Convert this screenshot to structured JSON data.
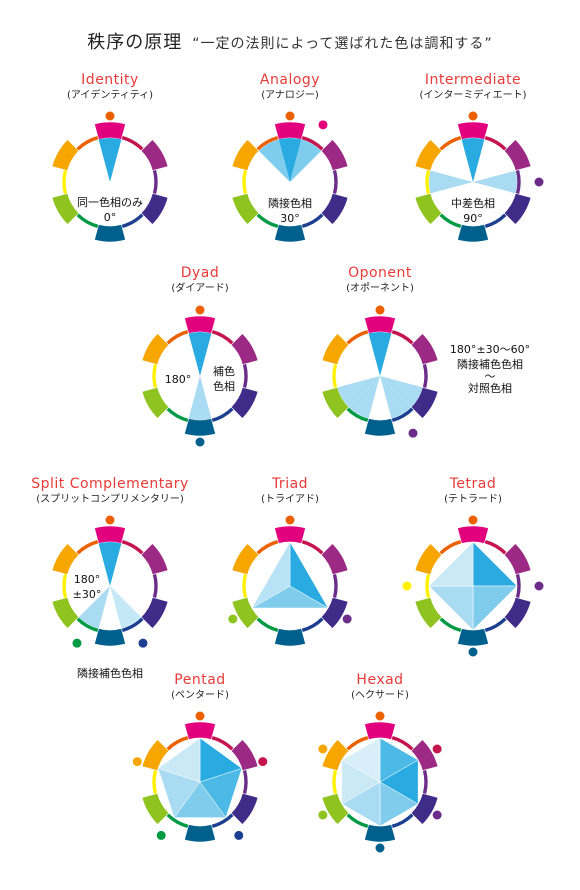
{
  "title": {
    "main": "秩序の原理",
    "sub": "“一定の法則によって選ばれた色は調和する”"
  },
  "wheel_colors": [
    "#e3007f",
    "#c4154f",
    "#9c2a85",
    "#6b2c8a",
    "#3f2c88",
    "#1d3f8f",
    "#00608d",
    "#009a44",
    "#8fc31f",
    "#fff100",
    "#f7a600",
    "#eb6100"
  ],
  "schemes": [
    {
      "name_en": "Identity",
      "name_jp": "(アイデンティティ)",
      "note": [
        "同一色相のみ",
        "0°"
      ]
    },
    {
      "name_en": "Analogy",
      "name_jp": "(アナロジー)",
      "note": [
        "隣接色相",
        "30°"
      ]
    },
    {
      "name_en": "Intermediate",
      "name_jp": "(インターミディエート)",
      "note": [
        "中差色相",
        "90°"
      ]
    },
    {
      "name_en": "Dyad",
      "name_jp": "(ダイアード)",
      "note_left": "180°",
      "note_right": [
        "補色",
        "色相"
      ]
    },
    {
      "name_en": "Oponent",
      "name_jp": "(オポーネント)",
      "note": [
        "180°±30〜60°",
        "隣接補色色相",
        "〜",
        "対照色相"
      ]
    },
    {
      "name_en": "Split Complementary",
      "name_jp": "(スプリットコンプリメンタリー)",
      "note": [
        "180°",
        "±30°"
      ],
      "note_below": "隣接補色色相"
    },
    {
      "name_en": "Triad",
      "name_jp": "(トライアド)"
    },
    {
      "name_en": "Tetrad",
      "name_jp": "(テトラード)"
    },
    {
      "name_en": "Pentad",
      "name_jp": "(ペンタード)"
    },
    {
      "name_en": "Hexad",
      "name_jp": "(ヘクサード)"
    }
  ]
}
